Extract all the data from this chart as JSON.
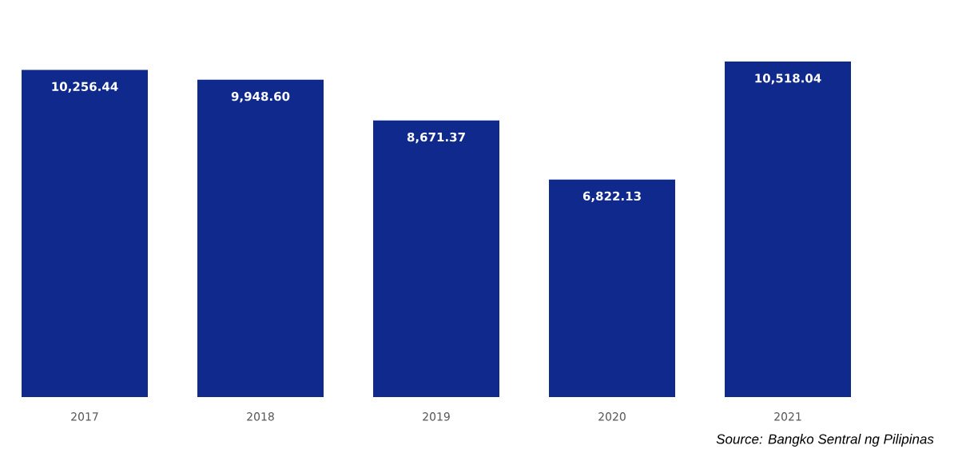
{
  "chart_data": {
    "type": "bar",
    "categories": [
      "2017",
      "2018",
      "2019",
      "2020",
      "2021"
    ],
    "values": [
      10256.44,
      9948.6,
      8671.37,
      6822.13,
      10518.04
    ],
    "value_labels": [
      "10,256.44",
      "9,948.60",
      "8,671.37",
      "6,822.13",
      "10,518.04"
    ],
    "color": "#0f2a8c",
    "annotations": [
      "Source: Bangko Sentral ng Pilipinas"
    ]
  }
}
